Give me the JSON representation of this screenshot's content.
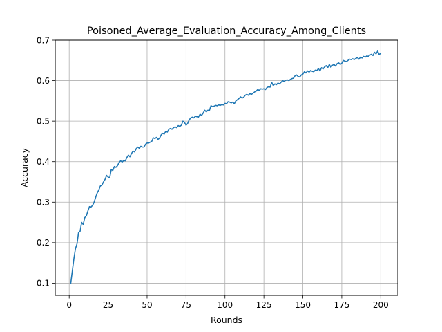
{
  "chart_data": {
    "type": "line",
    "title": "Poisoned_Average_Evaluation_Accuracy_Among_Clients",
    "xlabel": "Rounds",
    "ylabel": "Accuracy",
    "xlim": [
      -8.95,
      210.95
    ],
    "ylim": [
      0.07,
      0.7
    ],
    "xticks": [
      0,
      25,
      50,
      75,
      100,
      125,
      150,
      175,
      200
    ],
    "yticks": [
      0.1,
      0.2,
      0.3,
      0.4,
      0.5,
      0.6,
      0.7
    ],
    "grid": true,
    "series": [
      {
        "color": "#1f77b4",
        "points": [
          [
            1,
            0.1
          ],
          [
            2,
            0.13
          ],
          [
            3,
            0.16
          ],
          [
            4,
            0.185
          ],
          [
            5,
            0.197
          ],
          [
            6,
            0.225
          ],
          [
            7,
            0.228
          ],
          [
            8,
            0.25
          ],
          [
            9,
            0.245
          ],
          [
            10,
            0.262
          ],
          [
            11,
            0.266
          ],
          [
            12,
            0.278
          ],
          [
            13,
            0.289
          ],
          [
            14,
            0.288
          ],
          [
            15,
            0.292
          ],
          [
            16,
            0.3
          ],
          [
            17,
            0.312
          ],
          [
            18,
            0.323
          ],
          [
            19,
            0.33
          ],
          [
            20,
            0.34
          ],
          [
            21,
            0.342
          ],
          [
            22,
            0.35
          ],
          [
            23,
            0.356
          ],
          [
            24,
            0.366
          ],
          [
            25,
            0.362
          ],
          [
            26,
            0.36
          ],
          [
            27,
            0.381
          ],
          [
            28,
            0.378
          ],
          [
            29,
            0.388
          ],
          [
            30,
            0.386
          ],
          [
            31,
            0.39
          ],
          [
            32,
            0.398
          ],
          [
            33,
            0.402
          ],
          [
            34,
            0.399
          ],
          [
            35,
            0.403
          ],
          [
            36,
            0.402
          ],
          [
            37,
            0.41
          ],
          [
            38,
            0.416
          ],
          [
            39,
            0.412
          ],
          [
            40,
            0.42
          ],
          [
            41,
            0.426
          ],
          [
            42,
            0.424
          ],
          [
            43,
            0.432
          ],
          [
            44,
            0.436
          ],
          [
            45,
            0.433
          ],
          [
            46,
            0.438
          ],
          [
            47,
            0.436
          ],
          [
            48,
            0.436
          ],
          [
            49,
            0.443
          ],
          [
            50,
            0.446
          ],
          [
            51,
            0.446
          ],
          [
            52,
            0.448
          ],
          [
            53,
            0.45
          ],
          [
            54,
            0.459
          ],
          [
            55,
            0.457
          ],
          [
            56,
            0.46
          ],
          [
            57,
            0.455
          ],
          [
            58,
            0.458
          ],
          [
            59,
            0.466
          ],
          [
            60,
            0.47
          ],
          [
            61,
            0.468
          ],
          [
            62,
            0.475
          ],
          [
            63,
            0.473
          ],
          [
            64,
            0.48
          ],
          [
            65,
            0.482
          ],
          [
            66,
            0.48
          ],
          [
            67,
            0.484
          ],
          [
            68,
            0.486
          ],
          [
            69,
            0.484
          ],
          [
            70,
            0.489
          ],
          [
            71,
            0.487
          ],
          [
            72,
            0.49
          ],
          [
            73,
            0.5
          ],
          [
            74,
            0.497
          ],
          [
            75,
            0.49
          ],
          [
            76,
            0.494
          ],
          [
            77,
            0.503
          ],
          [
            78,
            0.508
          ],
          [
            79,
            0.51
          ],
          [
            80,
            0.508
          ],
          [
            81,
            0.512
          ],
          [
            82,
            0.511
          ],
          [
            83,
            0.51
          ],
          [
            84,
            0.517
          ],
          [
            85,
            0.514
          ],
          [
            86,
            0.52
          ],
          [
            87,
            0.527
          ],
          [
            88,
            0.523
          ],
          [
            89,
            0.527
          ],
          [
            90,
            0.526
          ],
          [
            91,
            0.538
          ],
          [
            92,
            0.536
          ],
          [
            93,
            0.537
          ],
          [
            94,
            0.539
          ],
          [
            95,
            0.538
          ],
          [
            96,
            0.54
          ],
          [
            97,
            0.539
          ],
          [
            98,
            0.541
          ],
          [
            99,
            0.54
          ],
          [
            100,
            0.544
          ],
          [
            101,
            0.543
          ],
          [
            102,
            0.548
          ],
          [
            103,
            0.547
          ],
          [
            104,
            0.545
          ],
          [
            105,
            0.547
          ],
          [
            106,
            0.543
          ],
          [
            107,
            0.55
          ],
          [
            108,
            0.553
          ],
          [
            109,
            0.556
          ],
          [
            110,
            0.56
          ],
          [
            111,
            0.557
          ],
          [
            112,
            0.559
          ],
          [
            113,
            0.564
          ],
          [
            114,
            0.566
          ],
          [
            115,
            0.564
          ],
          [
            116,
            0.568
          ],
          [
            117,
            0.566
          ],
          [
            118,
            0.569
          ],
          [
            119,
            0.572
          ],
          [
            120,
            0.574
          ],
          [
            121,
            0.578
          ],
          [
            122,
            0.576
          ],
          [
            123,
            0.58
          ],
          [
            124,
            0.579
          ],
          [
            125,
            0.58
          ],
          [
            126,
            0.578
          ],
          [
            127,
            0.583
          ],
          [
            128,
            0.585
          ],
          [
            129,
            0.584
          ],
          [
            130,
            0.596
          ],
          [
            131,
            0.588
          ],
          [
            132,
            0.592
          ],
          [
            133,
            0.59
          ],
          [
            134,
            0.594
          ],
          [
            135,
            0.592
          ],
          [
            136,
            0.596
          ],
          [
            137,
            0.6
          ],
          [
            138,
            0.598
          ],
          [
            139,
            0.601
          ],
          [
            140,
            0.602
          ],
          [
            141,
            0.6
          ],
          [
            142,
            0.603
          ],
          [
            143,
            0.605
          ],
          [
            144,
            0.606
          ],
          [
            145,
            0.612
          ],
          [
            146,
            0.614
          ],
          [
            147,
            0.61
          ],
          [
            148,
            0.609
          ],
          [
            149,
            0.614
          ],
          [
            150,
            0.616
          ],
          [
            151,
            0.622
          ],
          [
            152,
            0.619
          ],
          [
            153,
            0.624
          ],
          [
            154,
            0.621
          ],
          [
            155,
            0.625
          ],
          [
            156,
            0.623
          ],
          [
            157,
            0.622
          ],
          [
            158,
            0.626
          ],
          [
            159,
            0.625
          ],
          [
            160,
            0.63
          ],
          [
            161,
            0.624
          ],
          [
            162,
            0.632
          ],
          [
            163,
            0.629
          ],
          [
            164,
            0.634
          ],
          [
            165,
            0.637
          ],
          [
            166,
            0.632
          ],
          [
            167,
            0.64
          ],
          [
            168,
            0.633
          ],
          [
            169,
            0.638
          ],
          [
            170,
            0.64
          ],
          [
            171,
            0.636
          ],
          [
            172,
            0.642
          ],
          [
            173,
            0.644
          ],
          [
            174,
            0.64
          ],
          [
            175,
            0.643
          ],
          [
            176,
            0.65
          ],
          [
            177,
            0.648
          ],
          [
            178,
            0.647
          ],
          [
            179,
            0.65
          ],
          [
            180,
            0.653
          ],
          [
            181,
            0.652
          ],
          [
            182,
            0.654
          ],
          [
            183,
            0.652
          ],
          [
            184,
            0.655
          ],
          [
            185,
            0.657
          ],
          [
            186,
            0.653
          ],
          [
            187,
            0.658
          ],
          [
            188,
            0.656
          ],
          [
            189,
            0.66
          ],
          [
            190,
            0.658
          ],
          [
            191,
            0.661
          ],
          [
            192,
            0.66
          ],
          [
            193,
            0.663
          ],
          [
            194,
            0.665
          ],
          [
            195,
            0.662
          ],
          [
            196,
            0.67
          ],
          [
            197,
            0.666
          ],
          [
            198,
            0.673
          ],
          [
            199,
            0.664
          ],
          [
            200,
            0.668
          ]
        ]
      }
    ]
  }
}
